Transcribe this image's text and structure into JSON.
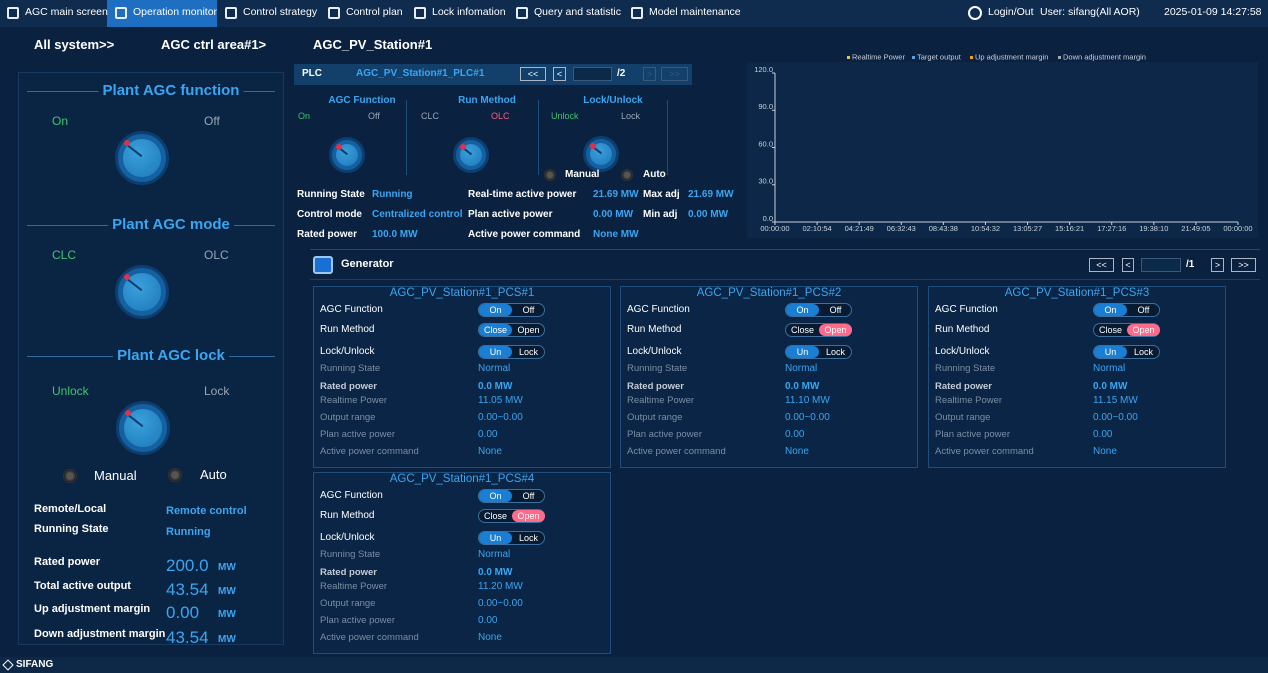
{
  "nav": {
    "items": [
      "AGC main screen",
      "Operation monitor",
      "Control strategy",
      "Control plan",
      "Lock infomation",
      "Query and statistic",
      "Model maintenance"
    ],
    "active": 1,
    "login": "Login/Out",
    "user": "User: sifang(All AOR)",
    "datetime": "2025-01-09 14:27:58"
  },
  "breadcrumb": [
    "All system>>",
    "AGC ctrl area#1>",
    "AGC_PV_Station#1"
  ],
  "plant": {
    "sections": [
      {
        "title": "Plant AGC function",
        "options": [
          "On",
          "Off"
        ],
        "active": 0
      },
      {
        "title": "Plant AGC mode",
        "options": [
          "CLC",
          "OLC"
        ],
        "active": 0
      },
      {
        "title": "Plant AGC lock",
        "options": [
          "Unlock",
          "Lock"
        ],
        "active": 0
      }
    ],
    "modes": [
      "Manual",
      "Auto"
    ],
    "info": [
      {
        "label": "Remote/Local",
        "value": "Remote control"
      },
      {
        "label": "Running State",
        "value": "Running"
      }
    ],
    "metrics": [
      {
        "label": "Rated power",
        "value": "200.0",
        "unit": "MW"
      },
      {
        "label": "Total active output",
        "value": "43.54",
        "unit": "MW"
      },
      {
        "label": "Up adjustment margin",
        "value": "0.00",
        "unit": "MW"
      },
      {
        "label": "Down adjustment margin",
        "value": "43.54",
        "unit": "MW"
      }
    ]
  },
  "plc": {
    "label": "PLC",
    "name": "AGC_PV_Station#1_PLC#1",
    "pager": {
      "buttons": [
        "<<",
        "<",
        ">",
        ">>"
      ],
      "total": "/2"
    },
    "sections": [
      {
        "title": "AGC Function",
        "options": [
          "On",
          "Off"
        ],
        "active": 0
      },
      {
        "title": "Run Method",
        "options": [
          "CLC",
          "OLC"
        ],
        "active": 1
      },
      {
        "title": "Lock/Unlock",
        "options": [
          "Unlock",
          "Lock"
        ],
        "active": 0
      }
    ],
    "modes": [
      "Manual",
      "Auto"
    ],
    "stats": [
      {
        "label": "Running State",
        "value": "Running"
      },
      {
        "label": "Control mode",
        "value": "Centralized control"
      },
      {
        "label": "Rated power",
        "value": "100.0 MW"
      },
      {
        "label": "Real-time active power",
        "value": "21.69 MW"
      },
      {
        "label": "Plan active power",
        "value": "0.00 MW"
      },
      {
        "label": "Active power command",
        "value": "None MW"
      },
      {
        "label": "Max adj",
        "value": "21.69 MW"
      },
      {
        "label": "Min adj",
        "value": "0.00 MW"
      }
    ]
  },
  "chart_data": {
    "type": "line",
    "categories": [
      "00:00:00",
      "02:10:54",
      "04:21:49",
      "06:32:43",
      "08:43:38",
      "10:54:32",
      "13:05:27",
      "15:16:21",
      "17:27:16",
      "19:38:10",
      "21:49:05",
      "00:00:00"
    ],
    "series": [
      {
        "name": "Realtime Power",
        "color": "#e8c24a"
      },
      {
        "name": "Target output",
        "color": "#5aa0e0"
      },
      {
        "name": "Up adjustment margin",
        "color": "#f0a020"
      },
      {
        "name": "Down adjustment margin",
        "color": "#a0a8b0"
      }
    ],
    "ylim": [
      0,
      120
    ],
    "yticks": [
      {
        "value": 0,
        "label": "0.0"
      },
      {
        "value": 30,
        "label": "30.0"
      },
      {
        "value": 60,
        "label": "60.0"
      },
      {
        "value": 90,
        "label": "90.0"
      },
      {
        "value": 120,
        "label": "120.0"
      }
    ],
    "grid": false
  },
  "generator": {
    "title": "Generator",
    "pager": {
      "buttons": [
        "<<",
        "<",
        ">",
        ">>"
      ],
      "total": "/1"
    },
    "cards": [
      {
        "title": "AGC_PV_Station#1_PCS#1",
        "toggles": [
          {
            "label": "AGC Function",
            "options": [
              "On",
              "Off"
            ],
            "active": 0
          },
          {
            "label": "Run Method",
            "options": [
              "Close",
              "Open"
            ],
            "active": 0
          },
          {
            "label": "Lock/Unlock",
            "options": [
              "Un",
              "Lock"
            ],
            "active": 0
          }
        ],
        "fields": [
          {
            "label": "Running State",
            "value": "Normal"
          },
          {
            "label": "Rated power",
            "value": "0.0 MW"
          },
          {
            "label": "Realtime Power",
            "value": "11.05 MW"
          },
          {
            "label": "Output range",
            "value": "0.00~0.00"
          },
          {
            "label": "Plan active power",
            "value": "0.00"
          },
          {
            "label": "Active power command",
            "value": "None"
          }
        ]
      },
      {
        "title": "AGC_PV_Station#1_PCS#2",
        "toggles": [
          {
            "label": "AGC Function",
            "options": [
              "On",
              "Off"
            ],
            "active": 0
          },
          {
            "label": "Run Method",
            "options": [
              "Close",
              "Open"
            ],
            "active": 1
          },
          {
            "label": "Lock/Unlock",
            "options": [
              "Un",
              "Lock"
            ],
            "active": 0
          }
        ],
        "fields": [
          {
            "label": "Running State",
            "value": "Normal"
          },
          {
            "label": "Rated power",
            "value": "0.0 MW"
          },
          {
            "label": "Realtime Power",
            "value": "11.10 MW"
          },
          {
            "label": "Output range",
            "value": "0.00~0.00"
          },
          {
            "label": "Plan active power",
            "value": "0.00"
          },
          {
            "label": "Active power command",
            "value": "None"
          }
        ]
      },
      {
        "title": "AGC_PV_Station#1_PCS#3",
        "toggles": [
          {
            "label": "AGC Function",
            "options": [
              "On",
              "Off"
            ],
            "active": 0
          },
          {
            "label": "Run Method",
            "options": [
              "Close",
              "Open"
            ],
            "active": 1
          },
          {
            "label": "Lock/Unlock",
            "options": [
              "Un",
              "Lock"
            ],
            "active": 0
          }
        ],
        "fields": [
          {
            "label": "Running State",
            "value": "Normal"
          },
          {
            "label": "Rated power",
            "value": "0.0 MW"
          },
          {
            "label": "Realtime Power",
            "value": "11.15 MW"
          },
          {
            "label": "Output range",
            "value": "0.00~0.00"
          },
          {
            "label": "Plan active power",
            "value": "0.00"
          },
          {
            "label": "Active power command",
            "value": "None"
          }
        ]
      },
      {
        "title": "AGC_PV_Station#1_PCS#4",
        "toggles": [
          {
            "label": "AGC Function",
            "options": [
              "On",
              "Off"
            ],
            "active": 0
          },
          {
            "label": "Run Method",
            "options": [
              "Close",
              "Open"
            ],
            "active": 1
          },
          {
            "label": "Lock/Unlock",
            "options": [
              "Un",
              "Lock"
            ],
            "active": 0
          }
        ],
        "fields": [
          {
            "label": "Running State",
            "value": "Normal"
          },
          {
            "label": "Rated power",
            "value": "0.0 MW"
          },
          {
            "label": "Realtime Power",
            "value": "11.20 MW"
          },
          {
            "label": "Output range",
            "value": "0.00~0.00"
          },
          {
            "label": "Plan active power",
            "value": "0.00"
          },
          {
            "label": "Active power command",
            "value": "None"
          }
        ]
      }
    ]
  },
  "footer": {
    "brand": "SIFANG"
  }
}
